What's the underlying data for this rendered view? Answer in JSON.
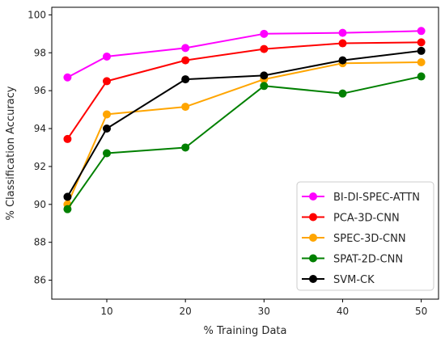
{
  "chart_data": {
    "type": "line",
    "title": "",
    "xlabel": "% Training Data",
    "ylabel": "% Classification Accuracy",
    "x": [
      5,
      10,
      20,
      30,
      40,
      50
    ],
    "xlim": [
      3,
      52.2
    ],
    "ylim": [
      85,
      100.4
    ],
    "xticks": [
      10,
      20,
      30,
      40,
      50
    ],
    "yticks": [
      86,
      88,
      90,
      92,
      94,
      96,
      98,
      100
    ],
    "grid": false,
    "legend_position": "lower-right",
    "series": [
      {
        "name": "BI-DI-SPEC-ATTN",
        "color": "#ff00ff",
        "values": [
          96.7,
          97.8,
          98.25,
          99.0,
          99.05,
          99.15
        ]
      },
      {
        "name": "PCA-3D-CNN",
        "color": "#ff0000",
        "values": [
          93.45,
          96.5,
          97.6,
          98.2,
          98.5,
          98.55
        ]
      },
      {
        "name": "SPEC-3D-CNN",
        "color": "#ffa500",
        "values": [
          90.0,
          94.75,
          95.15,
          96.6,
          97.45,
          97.5
        ]
      },
      {
        "name": "SPAT-2D-CNN",
        "color": "#008000",
        "values": [
          89.75,
          92.7,
          93.0,
          96.25,
          95.85,
          96.75
        ]
      },
      {
        "name": "SVM-CK",
        "color": "#000000",
        "values": [
          90.4,
          94.0,
          96.6,
          96.8,
          97.6,
          98.1
        ]
      }
    ]
  }
}
